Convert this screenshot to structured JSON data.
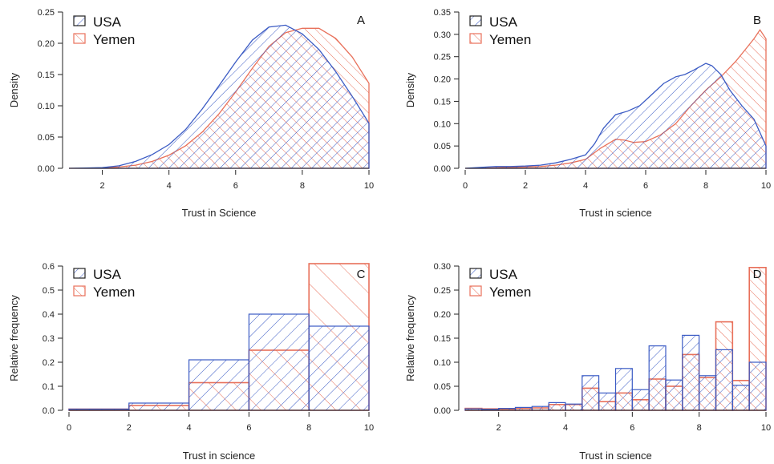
{
  "colors": {
    "usa": "#3b5bc4",
    "yemen": "#e8705a",
    "axis": "#222222"
  },
  "chart_data": [
    {
      "panel": "A",
      "type": "area",
      "xlabel": "Trust in Science",
      "ylabel": "Density",
      "xlim": [
        1,
        10
      ],
      "ylim": [
        0,
        0.25
      ],
      "xticks": [
        "2",
        "4",
        "6",
        "8",
        "10"
      ],
      "yticks": [
        "0.00",
        "0.05",
        "0.10",
        "0.15",
        "0.20",
        "0.25"
      ],
      "legend": [
        "USA",
        "Yemen"
      ],
      "series": [
        {
          "name": "USA",
          "x": [
            1,
            1.5,
            2,
            2.5,
            3,
            3.5,
            4,
            4.5,
            5,
            5.5,
            6,
            6.5,
            7,
            7.5,
            8,
            8.5,
            9,
            9.5,
            10
          ],
          "values": [
            0.0,
            0.0005,
            0.001,
            0.004,
            0.011,
            0.022,
            0.038,
            0.062,
            0.095,
            0.132,
            0.17,
            0.205,
            0.226,
            0.229,
            0.215,
            0.19,
            0.155,
            0.115,
            0.072
          ]
        },
        {
          "name": "Yemen",
          "x": [
            1,
            1.5,
            2,
            2.5,
            3,
            3.5,
            4,
            4.5,
            5,
            5.5,
            6,
            6.5,
            7,
            7.5,
            8,
            8.5,
            9,
            9.5,
            10
          ],
          "values": [
            0.0,
            0.0,
            0.0005,
            0.002,
            0.005,
            0.011,
            0.021,
            0.036,
            0.058,
            0.087,
            0.122,
            0.16,
            0.195,
            0.217,
            0.224,
            0.224,
            0.208,
            0.178,
            0.136
          ]
        }
      ]
    },
    {
      "panel": "B",
      "type": "area",
      "xlabel": "Trust in science",
      "ylabel": "Density",
      "xlim": [
        0,
        10
      ],
      "ylim": [
        0,
        0.35
      ],
      "xticks": [
        "0",
        "2",
        "4",
        "6",
        "8",
        "10"
      ],
      "yticks": [
        "0.00",
        "0.05",
        "0.10",
        "0.15",
        "0.20",
        "0.25",
        "0.30",
        "0.35"
      ],
      "legend": [
        "USA",
        "Yemen"
      ],
      "series": [
        {
          "name": "USA",
          "x": [
            0,
            0.5,
            1,
            1.5,
            2,
            2.5,
            3,
            3.5,
            4,
            4.3,
            4.6,
            5,
            5.4,
            5.8,
            6.2,
            6.6,
            7,
            7.3,
            7.6,
            8,
            8.2,
            8.5,
            8.8,
            9.2,
            9.6,
            10
          ],
          "values": [
            0.0,
            0.002,
            0.004,
            0.004,
            0.005,
            0.007,
            0.012,
            0.02,
            0.03,
            0.055,
            0.09,
            0.12,
            0.128,
            0.14,
            0.165,
            0.19,
            0.205,
            0.21,
            0.22,
            0.235,
            0.23,
            0.21,
            0.175,
            0.14,
            0.11,
            0.05
          ]
        },
        {
          "name": "Yemen",
          "x": [
            0,
            0.5,
            1,
            1.5,
            2,
            2.5,
            3,
            3.5,
            4,
            4.5,
            5,
            5.3,
            5.6,
            6,
            6.5,
            7,
            7.5,
            8,
            8.5,
            9,
            9.3,
            9.6,
            9.8,
            10
          ],
          "values": [
            0.0,
            0.0,
            0.001,
            0.002,
            0.003,
            0.004,
            0.007,
            0.012,
            0.02,
            0.045,
            0.065,
            0.063,
            0.058,
            0.06,
            0.075,
            0.1,
            0.14,
            0.175,
            0.205,
            0.24,
            0.265,
            0.29,
            0.31,
            0.29
          ]
        }
      ]
    },
    {
      "panel": "C",
      "type": "bar",
      "xlabel": "Trust in science",
      "ylabel": "Relative frequency",
      "xlim": [
        0,
        10
      ],
      "ylim": [
        0,
        0.6
      ],
      "xticks": [
        "0",
        "2",
        "4",
        "6",
        "8",
        "10"
      ],
      "yticks": [
        "0.0",
        "0.1",
        "0.2",
        "0.3",
        "0.4",
        "0.5",
        "0.6"
      ],
      "legend": [
        "USA",
        "Yemen"
      ],
      "bin_edges": [
        0,
        2,
        4,
        6,
        8,
        10
      ],
      "series": [
        {
          "name": "USA",
          "values": [
            0.005,
            0.03,
            0.21,
            0.4,
            0.35
          ]
        },
        {
          "name": "Yemen",
          "values": [
            0.005,
            0.02,
            0.115,
            0.25,
            0.61
          ]
        }
      ]
    },
    {
      "panel": "D",
      "type": "bar",
      "xlabel": "Trust in science",
      "ylabel": "Relative frequency",
      "xlim": [
        1,
        10
      ],
      "ylim": [
        0,
        0.3
      ],
      "xticks": [
        "2",
        "4",
        "6",
        "8",
        "10"
      ],
      "yticks": [
        "0.00",
        "0.05",
        "0.10",
        "0.15",
        "0.20",
        "0.25",
        "0.30"
      ],
      "legend": [
        "USA",
        "Yemen"
      ],
      "bin_edges": [
        1,
        1.5,
        2,
        2.5,
        3,
        3.5,
        4,
        4.5,
        5,
        5.5,
        6,
        6.5,
        7,
        7.5,
        8,
        8.5,
        9,
        9.5,
        10
      ],
      "series": [
        {
          "name": "USA",
          "values": [
            0.003,
            0.002,
            0.004,
            0.006,
            0.008,
            0.016,
            0.013,
            0.072,
            0.036,
            0.087,
            0.043,
            0.134,
            0.063,
            0.156,
            0.072,
            0.126,
            0.052,
            0.1
          ]
        },
        {
          "name": "Yemen",
          "values": [
            0.004,
            0.003,
            0.003,
            0.004,
            0.005,
            0.012,
            0.012,
            0.046,
            0.018,
            0.036,
            0.022,
            0.065,
            0.05,
            0.116,
            0.068,
            0.184,
            0.062,
            0.297
          ]
        }
      ]
    }
  ]
}
